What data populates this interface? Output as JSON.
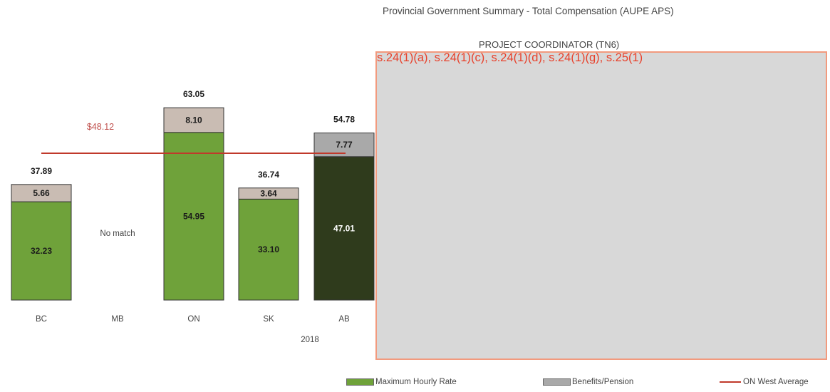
{
  "chart_data": {
    "type": "bar",
    "title": "Provincial Government Summary - Total Compensation (AUPE APS)",
    "subtitle": "PROJECT COORDINATOR (TN6)",
    "categories": [
      "BC",
      "MB",
      "ON",
      "SK",
      "AB"
    ],
    "group_label": "2018",
    "stacked": true,
    "ylim": [
      0,
      68
    ],
    "series": [
      {
        "name": "Maximum Hourly Rate",
        "values": [
          32.23,
          null,
          54.95,
          33.1,
          47.01
        ],
        "labels": [
          "32.23",
          "",
          "54.95",
          "33.10",
          "47.01"
        ]
      },
      {
        "name": "Benefits/Pension",
        "values": [
          5.66,
          null,
          8.1,
          3.64,
          7.77
        ],
        "labels": [
          "5.66",
          "",
          "8.10",
          "3.64",
          "7.77"
        ]
      }
    ],
    "totals": [
      "37.89",
      "",
      "63.05",
      "36.74",
      "54.78"
    ],
    "no_match_label": "No match",
    "average_line": {
      "name": "ON West Average",
      "value": 48.12,
      "label": "$48.12"
    },
    "highlight_category": "AB",
    "colors": {
      "max_rate": "#6fa23a",
      "max_rate_highlight": "#2f3b1c",
      "benefits": "#c9bcb3",
      "benefits_highlight": "#a9a9a9",
      "average": "#c0392b",
      "average_label": "#c0504d"
    },
    "legend": [
      {
        "label": "Maximum Hourly Rate",
        "kind": "swatch",
        "color": "#6fa23a"
      },
      {
        "label": "Benefits/Pension",
        "kind": "swatch",
        "color": "#a9a9a9"
      },
      {
        "label": "ON West Average",
        "kind": "line",
        "color": "#c0392b"
      }
    ],
    "legend_position": "bottom"
  },
  "redaction": {
    "text": "s.24(1)(a), s.24(1)(c), s.24(1)(d), s.24(1)(g), s.25(1)"
  }
}
